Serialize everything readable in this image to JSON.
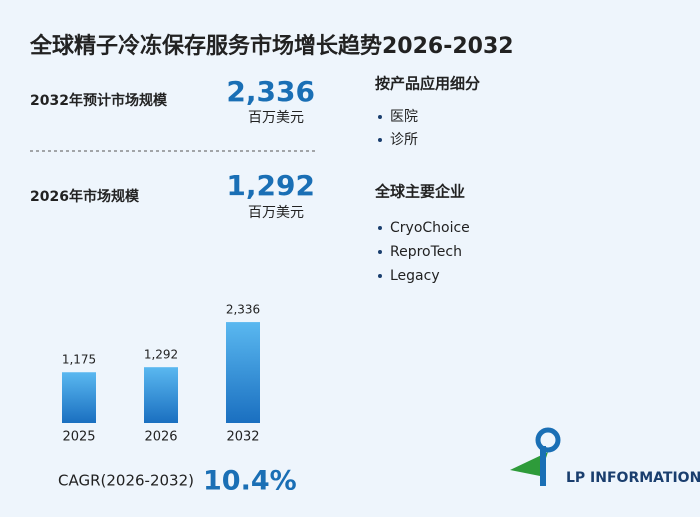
{
  "title": "全球精子冷冻保存服务市场增长趋势2026-2032",
  "stats": [
    {
      "label": "2032年预计市场规模",
      "value": "2,336",
      "unit": "百万美元"
    },
    {
      "label": "2026年市场规模",
      "value": "1,292",
      "unit": "百万美元"
    }
  ],
  "segments": {
    "title": "按产品应用细分",
    "items": [
      "医院",
      "诊所"
    ]
  },
  "companies": {
    "title": "全球主要企业",
    "items": [
      "CryoChoice",
      "ReproTech",
      "Legacy"
    ]
  },
  "chart_data": {
    "type": "bar",
    "categories": [
      "2025",
      "2026",
      "2032"
    ],
    "values": [
      1175,
      1292,
      2336
    ],
    "value_labels": [
      "1,175",
      "1,292",
      "2,336"
    ],
    "color": "#1a7ad0"
  },
  "cagr": {
    "label": "CAGR(2026-2032)",
    "value": "10.4%"
  },
  "logo": "LP INFORMATION"
}
